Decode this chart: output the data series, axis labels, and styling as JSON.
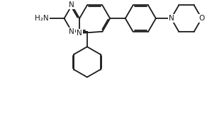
{
  "bg_color": "#ffffff",
  "bond_color": "#1a1a1a",
  "atom_color": "#1a1a1a",
  "bond_width": 1.3,
  "font_size": 7.5,
  "fig_width": 2.99,
  "fig_height": 1.66,
  "dpi": 100,
  "xlim": [
    0.0,
    9.5
  ],
  "ylim": [
    -1.0,
    4.5
  ]
}
